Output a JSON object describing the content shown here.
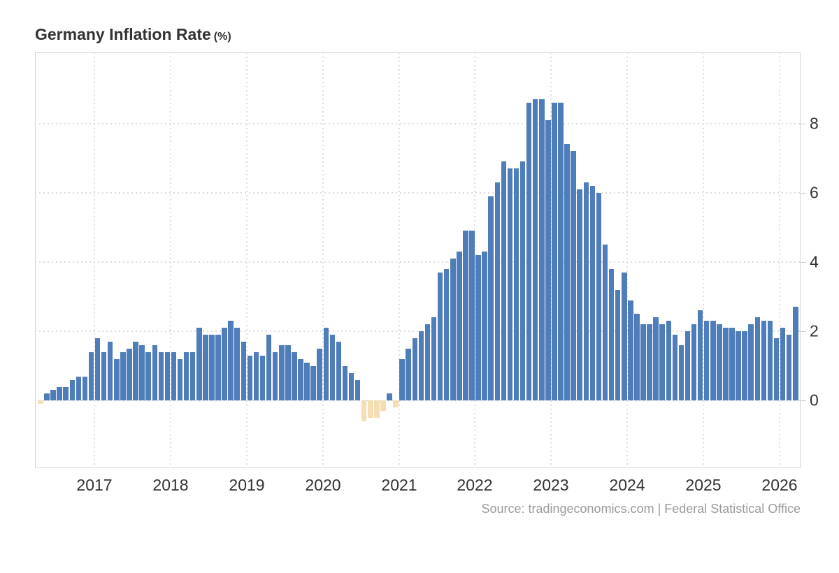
{
  "header": {
    "title": "Germany Inflation Rate",
    "unit_suffix": "(%)"
  },
  "footer": {
    "source_text": "Source: tradingeconomics.com | Federal Statistical Office"
  },
  "colors": {
    "bar_positive": "#4e7dba",
    "bar_negative": "#f5deb3",
    "grid": "#dcdcdc",
    "axis_text": "#333333",
    "title_text": "#333333",
    "source_text": "#9b9b9b",
    "plot_border": "#d4d4d4",
    "background": "#ffffff"
  },
  "chart_data": {
    "type": "bar",
    "title": "Germany Inflation Rate (%)",
    "frequency": "monthly",
    "start_month": "2016-04",
    "end_month": "2026-03",
    "grid": "dotted",
    "legend": "none",
    "y_axis_side": "right",
    "ylim": [
      -1.95,
      10.05
    ],
    "y_ticks": [
      0,
      2,
      4,
      6,
      8
    ],
    "y_tick_labels": [
      "0",
      "2",
      "4",
      "6",
      "8"
    ],
    "x_tick_years": [
      "2017",
      "2018",
      "2019",
      "2020",
      "2021",
      "2022",
      "2023",
      "2024",
      "2025",
      "2026"
    ],
    "values": [
      -0.1,
      0.2,
      0.3,
      0.4,
      0.4,
      0.6,
      0.7,
      0.7,
      1.4,
      1.8,
      1.4,
      1.7,
      1.2,
      1.4,
      1.5,
      1.7,
      1.6,
      1.4,
      1.6,
      1.4,
      1.4,
      1.4,
      1.2,
      1.4,
      1.4,
      2.1,
      1.9,
      1.9,
      1.9,
      2.1,
      2.3,
      2.1,
      1.7,
      1.3,
      1.4,
      1.3,
      1.9,
      1.4,
      1.6,
      1.6,
      1.4,
      1.2,
      1.1,
      1.0,
      1.5,
      2.1,
      1.9,
      1.7,
      1.0,
      0.8,
      0.6,
      -0.6,
      -0.5,
      -0.5,
      -0.3,
      0.2,
      -0.2,
      1.2,
      1.5,
      1.8,
      2.0,
      2.2,
      2.4,
      3.7,
      3.8,
      4.1,
      4.3,
      4.9,
      4.9,
      4.2,
      4.3,
      5.9,
      6.3,
      6.9,
      6.7,
      6.7,
      6.9,
      8.6,
      8.7,
      8.7,
      8.1,
      8.6,
      8.6,
      7.4,
      7.2,
      6.1,
      6.3,
      6.2,
      6.0,
      4.5,
      3.8,
      3.2,
      3.7,
      2.9,
      2.5,
      2.2,
      2.2,
      2.4,
      2.2,
      2.3,
      1.9,
      1.6,
      2.0,
      2.2,
      2.6,
      2.3,
      2.3,
      2.2,
      2.1,
      2.1,
      2.0,
      2.0,
      2.2,
      2.4,
      2.3,
      2.3,
      1.8,
      2.1,
      1.9,
      2.7
    ]
  }
}
